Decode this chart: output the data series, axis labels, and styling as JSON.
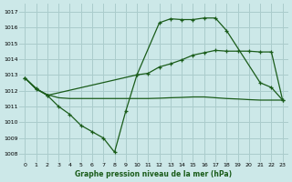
{
  "background_color": "#cce8e8",
  "grid_color": "#aacccc",
  "line_color_dark": "#1a5c1a",
  "line_color_mid": "#2e7d32",
  "xlabel": "Graphe pression niveau de la mer (hPa)",
  "ylim": [
    1007.5,
    1017.5
  ],
  "xlim": [
    -0.5,
    23.5
  ],
  "yticks": [
    1008,
    1009,
    1010,
    1011,
    1012,
    1013,
    1014,
    1015,
    1016,
    1017
  ],
  "xticks": [
    0,
    1,
    2,
    3,
    4,
    5,
    6,
    7,
    8,
    9,
    10,
    11,
    12,
    13,
    14,
    15,
    16,
    17,
    18,
    19,
    20,
    21,
    22,
    23
  ],
  "series1_x": [
    0,
    1,
    2,
    10,
    12,
    13,
    14,
    15,
    16,
    17,
    18,
    21,
    22,
    23
  ],
  "series1_y": [
    1012.8,
    1012.15,
    1011.7,
    1013.0,
    1016.3,
    1016.55,
    1016.5,
    1016.5,
    1016.6,
    1016.6,
    1015.8,
    1012.5,
    1012.2,
    1011.4
  ],
  "series2_x": [
    0,
    1,
    2,
    3,
    4,
    5,
    6,
    7,
    8,
    9,
    10,
    11,
    12,
    13,
    14,
    15,
    16,
    17,
    18,
    19,
    20,
    21,
    22,
    23
  ],
  "series2_y": [
    1012.8,
    1012.1,
    1011.7,
    1011.0,
    1010.5,
    1009.8,
    1009.4,
    1009.0,
    1008.1,
    1010.7,
    1013.0,
    1013.1,
    1013.5,
    1013.7,
    1013.95,
    1014.25,
    1014.4,
    1014.55,
    1014.5,
    1014.5,
    1014.5,
    1014.45,
    1014.45,
    1011.4
  ],
  "series3_x": [
    0,
    1,
    2,
    3,
    4,
    5,
    6,
    7,
    8,
    9,
    10,
    11,
    12,
    13,
    14,
    15,
    16,
    17,
    18,
    19,
    20,
    21,
    22,
    23
  ],
  "series3_y": [
    1012.8,
    1012.1,
    1011.75,
    1011.55,
    1011.5,
    1011.5,
    1011.5,
    1011.5,
    1011.5,
    1011.5,
    1011.5,
    1011.5,
    1011.52,
    1011.55,
    1011.57,
    1011.6,
    1011.6,
    1011.55,
    1011.5,
    1011.47,
    1011.43,
    1011.4,
    1011.4,
    1011.4
  ]
}
